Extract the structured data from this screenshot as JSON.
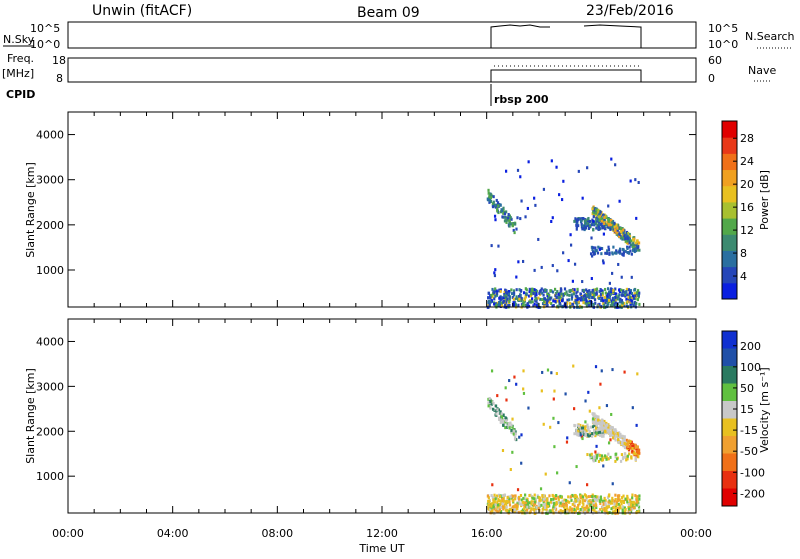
{
  "header": {
    "station": "Unwin (fitACF)",
    "beam": "Beam 09",
    "date": "23/Feb/2016"
  },
  "top_panels": {
    "nsky_label": "N.Sky",
    "nsky_ticks": [
      "10^5",
      "10^0"
    ],
    "nsky_right_ticks": [
      "10^5",
      "10^0"
    ],
    "nsearch_label": "N.Search",
    "freq_label_1": "Freq.",
    "freq_label_2": "[MHz]",
    "freq_ticks": [
      "18",
      "8"
    ],
    "nave_ticks": [
      "60",
      "0"
    ],
    "nave_label": "Nave",
    "cpid_label": "CPID",
    "cpid_value": "rbsp 200"
  },
  "chart_data": [
    {
      "type": "heatmap",
      "name": "power-panel",
      "xlabel": "",
      "ylabel": "Slant Range [km]",
      "ylim": [
        180,
        4500
      ],
      "yticks": [
        "1000",
        "2000",
        "3000",
        "4000"
      ],
      "colorbar_label": "Power [dB]",
      "colorbar_ticks": [
        "4",
        "8",
        "12",
        "16",
        "20",
        "24",
        "28"
      ],
      "colors": [
        "#0a1fe0",
        "#2546b8",
        "#2a6fa0",
        "#3c8a70",
        "#52a84a",
        "#a8c030",
        "#e8c020",
        "#f0a020",
        "#f07018",
        "#e83818",
        "#e00000"
      ]
    },
    {
      "type": "heatmap",
      "name": "velocity-panel",
      "xlabel": "Time UT",
      "ylabel": "Slant Range [km]",
      "ylim": [
        180,
        4500
      ],
      "yticks": [
        "1000",
        "2000",
        "3000",
        "4000"
      ],
      "xticks": [
        "00:00",
        "04:00",
        "08:00",
        "12:00",
        "16:00",
        "20:00",
        "00:00"
      ],
      "colorbar_label": "Velocity [m s⁻¹]",
      "colorbar_ticks": [
        "200",
        "100",
        "50",
        "15",
        "-15",
        "-50",
        "-100",
        "-200"
      ],
      "colors": [
        "#1030d0",
        "#2050a8",
        "#2a7a60",
        "#60c040",
        "#c8c8c8",
        "#e8c020",
        "#f0a030",
        "#f07018",
        "#e83010",
        "#e00000"
      ]
    }
  ],
  "data_window": {
    "start_hour": 16,
    "end_hour": 21.8
  }
}
